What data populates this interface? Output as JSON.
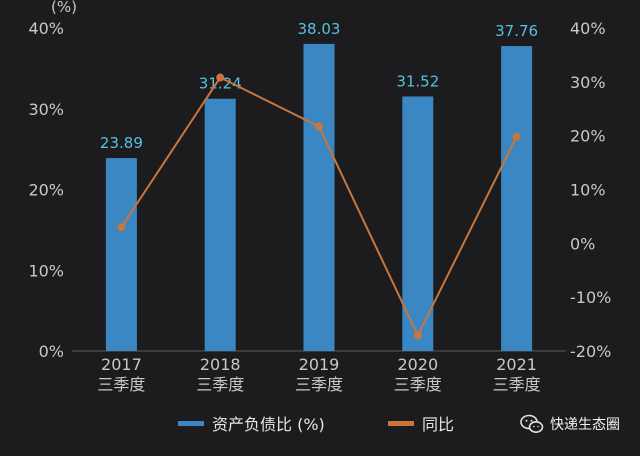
{
  "chart_data": {
    "type": "bar",
    "categories": [
      [
        "2017",
        "三季度"
      ],
      [
        "2018",
        "三季度"
      ],
      [
        "2019",
        "三季度"
      ],
      [
        "2020",
        "三季度"
      ],
      [
        "2021",
        "三季度"
      ]
    ],
    "left_unit_label": "(%)",
    "left_axis": {
      "ticks": [
        "0%",
        "10%",
        "20%",
        "30%",
        "40%"
      ],
      "ylim": [
        0,
        40
      ]
    },
    "right_axis": {
      "ticks": [
        "-20%",
        "-10%",
        "0%",
        "10%",
        "20%",
        "30%",
        "40%"
      ],
      "ylim": [
        -20,
        40
      ]
    },
    "series": [
      {
        "name": "资产负债比 (%)",
        "kind": "bar",
        "axis": "left",
        "color": "#3a87c4",
        "values": [
          23.89,
          31.24,
          38.03,
          31.52,
          37.76
        ],
        "data_labels": [
          "23.89",
          "31.24",
          "38.03",
          "31.52",
          "37.76"
        ]
      },
      {
        "name": "同比",
        "kind": "line",
        "axis": "right",
        "color": "#c8763a",
        "values": [
          3.0,
          30.8,
          21.7,
          -17.1,
          19.8
        ]
      }
    ],
    "grid": false,
    "legend_placement": "bottom",
    "label_color": "#56c1e0"
  },
  "watermark": {
    "text": "快递生态圈",
    "icon": "wechat-icon"
  }
}
